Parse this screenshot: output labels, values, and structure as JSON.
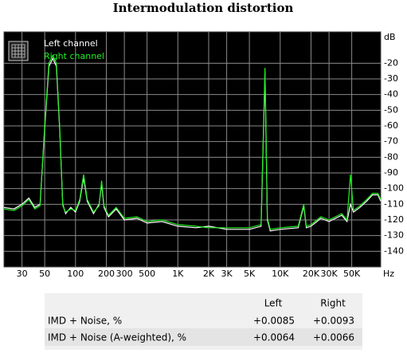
{
  "chart_data": {
    "type": "line",
    "title": "Intermodulation distortion",
    "x_unit": "Hz",
    "y_unit": "dB",
    "xscale": "log",
    "grid": true,
    "xlim": [
      20,
      96000
    ],
    "ylim": [
      -150,
      0
    ],
    "xticks": [
      30,
      50,
      100,
      200,
      300,
      500,
      {
        "value": 1000,
        "label": "1K"
      },
      {
        "value": 2000,
        "label": "2K"
      },
      {
        "value": 3000,
        "label": "3K"
      },
      {
        "value": 5000,
        "label": "5K"
      },
      {
        "value": 10000,
        "label": "10K"
      },
      {
        "value": 20000,
        "label": "20K"
      },
      {
        "value": 30000,
        "label": "30K"
      },
      {
        "value": 50000,
        "label": "50K"
      }
    ],
    "yticks": [
      -20,
      -30,
      -40,
      -50,
      -60,
      -70,
      -80,
      -90,
      -100,
      -110,
      -120,
      -130,
      -140
    ],
    "x": [
      20,
      25,
      30,
      35,
      40,
      45,
      50,
      55,
      60,
      65,
      70,
      75,
      80,
      90,
      100,
      110,
      120,
      130,
      150,
      170,
      180,
      190,
      210,
      250,
      300,
      400,
      500,
      700,
      1000,
      1500,
      2000,
      3000,
      5000,
      6500,
      7100,
      7500,
      8000,
      10000,
      15000,
      17000,
      18000,
      20000,
      25000,
      30000,
      40000,
      45000,
      48600,
      52000,
      60000,
      70000,
      80000,
      90000,
      96000
    ],
    "series": [
      {
        "name": "Left channel",
        "color": "#ffffff",
        "values": [
          -112,
          -113,
          -110,
          -106,
          -112,
          -110,
          -62,
          -22,
          -17,
          -22,
          -62,
          -110,
          -116,
          -112,
          -115,
          -108,
          -93,
          -108,
          -116,
          -110,
          -97,
          -112,
          -118,
          -113,
          -120,
          -119,
          -122,
          -121,
          -124,
          -125,
          -124,
          -126,
          -126,
          -124,
          -26,
          -120,
          -127,
          -126,
          -125,
          -111,
          -125,
          -124,
          -119,
          -121,
          -117,
          -121,
          -110,
          -115,
          -112,
          -108,
          -104,
          -104,
          -108
        ]
      },
      {
        "name": "Right channel",
        "color": "#22ee22",
        "values": [
          -113,
          -114,
          -111,
          -107,
          -113,
          -111,
          -60,
          -20,
          -15,
          -20,
          -60,
          -111,
          -115,
          -113,
          -114,
          -107,
          -91,
          -107,
          -115,
          -111,
          -95,
          -111,
          -117,
          -112,
          -119,
          -118,
          -121,
          -120,
          -123,
          -124,
          -125,
          -125,
          -125,
          -123,
          -23,
          -119,
          -126,
          -125,
          -124,
          -110,
          -124,
          -123,
          -118,
          -120,
          -116,
          -120,
          -91,
          -114,
          -111,
          -107,
          -103,
          -103,
          -107
        ]
      }
    ]
  },
  "table": {
    "columns": [
      "Left",
      "Right"
    ],
    "rows": [
      {
        "label": "IMD + Noise, %",
        "values": [
          "+0.0085",
          "+0.0093"
        ]
      },
      {
        "label": "IMD + Noise (A-weighted), %",
        "values": [
          "+0.0064",
          "+0.0066"
        ]
      }
    ]
  }
}
